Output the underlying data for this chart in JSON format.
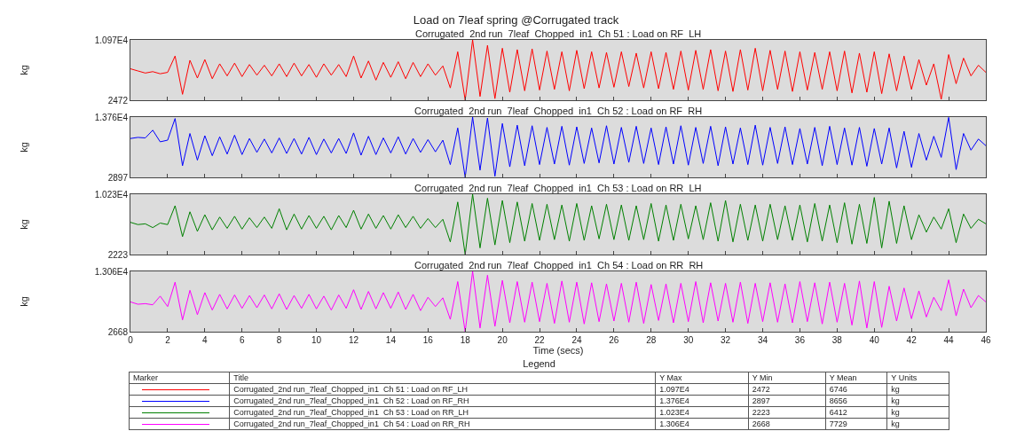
{
  "chart_data": [
    {
      "type": "line",
      "title": "Load on 7leaf spring @Corrugated track",
      "subtitle": "Corrugated  2nd run  7leaf  Chopped  in1  Ch 51 : Load on RF  LH",
      "ylabel": "kg",
      "line_style": "solid",
      "tick_labels": "y",
      "xlim": [
        0,
        46
      ],
      "xticks": [
        0,
        2,
        4,
        6,
        8,
        10,
        12,
        14,
        16,
        18,
        20,
        22,
        24,
        26,
        28,
        30,
        32,
        34,
        36,
        38,
        40,
        42,
        44,
        46
      ],
      "ylim": [
        2472,
        10970
      ],
      "yticks": [
        2472,
        {
          "value": 10970,
          "label": "1.097E4"
        }
      ],
      "x": [
        0,
        0.4,
        0.8,
        1.2,
        1.6,
        2,
        2.4,
        2.8,
        3.2,
        3.6,
        4,
        4.4,
        4.8,
        5.2,
        5.6,
        6,
        6.4,
        6.8,
        7.2,
        7.6,
        8,
        8.4,
        8.8,
        9.2,
        9.6,
        10,
        10.4,
        10.8,
        11.2,
        11.6,
        12,
        12.4,
        12.8,
        13.2,
        13.6,
        14,
        14.4,
        14.8,
        15.2,
        15.6,
        16,
        16.4,
        16.8,
        17.2,
        17.6,
        18,
        18.4,
        18.8,
        19.2,
        19.6,
        20,
        20.4,
        20.8,
        21.2,
        21.6,
        22,
        22.4,
        22.8,
        23.2,
        23.6,
        24,
        24.4,
        24.8,
        25.2,
        25.6,
        26,
        26.4,
        26.8,
        27.2,
        27.6,
        28,
        28.4,
        28.8,
        29.2,
        29.6,
        30,
        30.4,
        30.8,
        31.2,
        31.6,
        32,
        32.4,
        32.8,
        33.2,
        33.6,
        34,
        34.4,
        34.8,
        35.2,
        35.6,
        36,
        36.4,
        36.8,
        37.2,
        37.6,
        38,
        38.4,
        38.8,
        39.2,
        39.6,
        40,
        40.4,
        40.8,
        41.2,
        41.6,
        42,
        42.4,
        42.8,
        43.2,
        43.6,
        44,
        44.4,
        44.8,
        45.2,
        45.6,
        46
      ],
      "series": [
        {
          "color": "#ff0000",
          "values": [
            6900,
            6600,
            6300,
            6500,
            6200,
            6400,
            8700,
            3300,
            8100,
            5600,
            8200,
            5500,
            7600,
            5900,
            7700,
            5800,
            7500,
            6000,
            7400,
            5900,
            7600,
            5800,
            7700,
            5900,
            7500,
            5700,
            7600,
            6000,
            7500,
            5800,
            8700,
            5600,
            8000,
            5300,
            7800,
            5700,
            7900,
            5500,
            7800,
            5800,
            7600,
            6000,
            7300,
            4200,
            9300,
            2472,
            10970,
            3000,
            10200,
            2700,
            9800,
            3600,
            9600,
            3800,
            9700,
            3900,
            9400,
            4000,
            9300,
            3800,
            9500,
            4100,
            9300,
            4200,
            9200,
            4300,
            9300,
            4400,
            9100,
            4200,
            9300,
            4100,
            9200,
            4000,
            9400,
            3900,
            9500,
            4000,
            9600,
            3800,
            9400,
            3700,
            9600,
            3900,
            9800,
            3800,
            9500,
            4000,
            9400,
            3700,
            9300,
            3900,
            9200,
            4000,
            9300,
            3800,
            9400,
            3500,
            9100,
            3600,
            9300,
            3400,
            9000,
            3800,
            8700,
            4000,
            8200,
            4600,
            7600,
            2600,
            8900,
            4800,
            8400,
            5900,
            7400,
            6400
          ]
        }
      ]
    },
    {
      "type": "line",
      "subtitle": "Corrugated  2nd run  7leaf  Chopped  in1  Ch 52 : Load on RF  RH",
      "ylabel": "kg",
      "line_style": "solid",
      "tick_labels": "y",
      "xlim": [
        0,
        46
      ],
      "xticks": [
        0,
        2,
        4,
        6,
        8,
        10,
        12,
        14,
        16,
        18,
        20,
        22,
        24,
        26,
        28,
        30,
        32,
        34,
        36,
        38,
        40,
        42,
        44,
        46
      ],
      "ylim": [
        2897,
        13760
      ],
      "yticks": [
        2897,
        {
          "value": 13760,
          "label": "1.376E4"
        }
      ],
      "x": [
        0,
        0.4,
        0.8,
        1.2,
        1.6,
        2,
        2.4,
        2.8,
        3.2,
        3.6,
        4,
        4.4,
        4.8,
        5.2,
        5.6,
        6,
        6.4,
        6.8,
        7.2,
        7.6,
        8,
        8.4,
        8.8,
        9.2,
        9.6,
        10,
        10.4,
        10.8,
        11.2,
        11.6,
        12,
        12.4,
        12.8,
        13.2,
        13.6,
        14,
        14.4,
        14.8,
        15.2,
        15.6,
        16,
        16.4,
        16.8,
        17.2,
        17.6,
        18,
        18.4,
        18.8,
        19.2,
        19.6,
        20,
        20.4,
        20.8,
        21.2,
        21.6,
        22,
        22.4,
        22.8,
        23.2,
        23.6,
        24,
        24.4,
        24.8,
        25.2,
        25.6,
        26,
        26.4,
        26.8,
        27.2,
        27.6,
        28,
        28.4,
        28.8,
        29.2,
        29.6,
        30,
        30.4,
        30.8,
        31.2,
        31.6,
        32,
        32.4,
        32.8,
        33.2,
        33.6,
        34,
        34.4,
        34.8,
        35.2,
        35.6,
        36,
        36.4,
        36.8,
        37.2,
        37.6,
        38,
        38.4,
        38.8,
        39.2,
        39.6,
        40,
        40.4,
        40.8,
        41.2,
        41.6,
        42,
        42.4,
        42.8,
        43.2,
        43.6,
        44,
        44.4,
        44.8,
        45.2,
        45.6,
        46
      ],
      "series": [
        {
          "color": "#0000ff",
          "values": [
            9900,
            10100,
            10000,
            11400,
            9300,
            9600,
            13500,
            5000,
            10800,
            6000,
            10400,
            6800,
            10200,
            7100,
            10500,
            7000,
            9900,
            7400,
            9800,
            7300,
            10000,
            7200,
            9900,
            7100,
            10100,
            7000,
            9800,
            7300,
            9900,
            7200,
            10900,
            6900,
            10300,
            7000,
            10000,
            7300,
            10200,
            7100,
            9900,
            7400,
            9700,
            7500,
            9600,
            5200,
            11800,
            2897,
            13760,
            4200,
            13600,
            3100,
            12600,
            4800,
            12300,
            5000,
            12200,
            5200,
            11900,
            5300,
            12100,
            5100,
            12000,
            5400,
            11800,
            5500,
            12200,
            5300,
            11900,
            5600,
            12100,
            5400,
            11800,
            5200,
            12000,
            5300,
            12200,
            5100,
            11900,
            5400,
            12100,
            5000,
            12000,
            5300,
            11800,
            5200,
            12300,
            5100,
            11900,
            5400,
            12000,
            5200,
            11700,
            5300,
            11900,
            5000,
            12100,
            5200,
            11800,
            5100,
            11900,
            4900,
            11700,
            5300,
            11800,
            4600,
            11200,
            4700,
            10800,
            6000,
            10300,
            6500,
            13700,
            4300,
            10800,
            7800,
            9800,
            8600
          ]
        }
      ]
    },
    {
      "type": "line",
      "subtitle": "Corrugated  2nd run  7leaf  Chopped  in1  Ch 53 : Load on RR  LH",
      "ylabel": "kg",
      "line_style": "solid",
      "tick_labels": "y",
      "xlim": [
        0,
        46
      ],
      "xticks": [
        0,
        2,
        4,
        6,
        8,
        10,
        12,
        14,
        16,
        18,
        20,
        22,
        24,
        26,
        28,
        30,
        32,
        34,
        36,
        38,
        40,
        42,
        44,
        46
      ],
      "ylim": [
        2223,
        10230
      ],
      "yticks": [
        2223,
        {
          "value": 10230,
          "label": "1.023E4"
        }
      ],
      "x": [
        0,
        0.4,
        0.8,
        1.2,
        1.6,
        2,
        2.4,
        2.8,
        3.2,
        3.6,
        4,
        4.4,
        4.8,
        5.2,
        5.6,
        6,
        6.4,
        6.8,
        7.2,
        7.6,
        8,
        8.4,
        8.8,
        9.2,
        9.6,
        10,
        10.4,
        10.8,
        11.2,
        11.6,
        12,
        12.4,
        12.8,
        13.2,
        13.6,
        14,
        14.4,
        14.8,
        15.2,
        15.6,
        16,
        16.4,
        16.8,
        17.2,
        17.6,
        18,
        18.4,
        18.8,
        19.2,
        19.6,
        20,
        20.4,
        20.8,
        21.2,
        21.6,
        22,
        22.4,
        22.8,
        23.2,
        23.6,
        24,
        24.4,
        24.8,
        25.2,
        25.6,
        26,
        26.4,
        26.8,
        27.2,
        27.6,
        28,
        28.4,
        28.8,
        29.2,
        29.6,
        30,
        30.4,
        30.8,
        31.2,
        31.6,
        32,
        32.4,
        32.8,
        33.2,
        33.6,
        34,
        34.4,
        34.8,
        35.2,
        35.6,
        36,
        36.4,
        36.8,
        37.2,
        37.6,
        38,
        38.4,
        38.8,
        39.2,
        39.6,
        40,
        40.4,
        40.8,
        41.2,
        41.6,
        42,
        42.4,
        42.8,
        43.2,
        43.6,
        44,
        44.4,
        44.8,
        45.2,
        45.6,
        46
      ],
      "series": [
        {
          "color": "#008000",
          "values": [
            6500,
            6200,
            6300,
            5800,
            6400,
            6200,
            8700,
            4600,
            7900,
            5300,
            7500,
            5500,
            7200,
            5700,
            7300,
            5600,
            7100,
            5800,
            7200,
            5700,
            8300,
            5500,
            7600,
            5600,
            7400,
            5700,
            7300,
            5500,
            7400,
            5800,
            8100,
            5600,
            7600,
            5700,
            7400,
            5600,
            7500,
            5800,
            7300,
            5700,
            7000,
            5800,
            6900,
            3900,
            9200,
            2223,
            10230,
            3100,
            9700,
            3500,
            9400,
            3800,
            9200,
            4000,
            9000,
            4100,
            8900,
            4200,
            8800,
            4000,
            9000,
            4100,
            8700,
            4300,
            8900,
            4200,
            8800,
            4100,
            8700,
            4200,
            9000,
            4000,
            8800,
            4100,
            8900,
            4300,
            8700,
            4200,
            9100,
            4000,
            9400,
            3900,
            8900,
            4100,
            8800,
            4000,
            8900,
            4200,
            8700,
            4100,
            8800,
            3900,
            9000,
            4000,
            8800,
            3800,
            9100,
            3600,
            8900,
            3700,
            9800,
            3100,
            9300,
            3700,
            8700,
            4200,
            7500,
            5200,
            7200,
            5600,
            8300,
            3800,
            7600,
            5700,
            6900,
            6300
          ]
        }
      ]
    },
    {
      "type": "line",
      "subtitle": "Corrugated  2nd run  7leaf  Chopped  in1  Ch 54 : Load on RR  RH",
      "ylabel": "kg",
      "xlabel": "Time (secs)",
      "line_style": "solid",
      "xlim": [
        0,
        46
      ],
      "xticks": [
        0,
        2,
        4,
        6,
        8,
        10,
        12,
        14,
        16,
        18,
        20,
        22,
        24,
        26,
        28,
        30,
        32,
        34,
        36,
        38,
        40,
        42,
        44,
        46
      ],
      "ylim": [
        2668,
        13060
      ],
      "yticks": [
        2668,
        {
          "value": 13060,
          "label": "1.306E4"
        }
      ],
      "x": [
        0,
        0.4,
        0.8,
        1.2,
        1.6,
        2,
        2.4,
        2.8,
        3.2,
        3.6,
        4,
        4.4,
        4.8,
        5.2,
        5.6,
        6,
        6.4,
        6.8,
        7.2,
        7.6,
        8,
        8.4,
        8.8,
        9.2,
        9.6,
        10,
        10.4,
        10.8,
        11.2,
        11.6,
        12,
        12.4,
        12.8,
        13.2,
        13.6,
        14,
        14.4,
        14.8,
        15.2,
        15.6,
        16,
        16.4,
        16.8,
        17.2,
        17.6,
        18,
        18.4,
        18.8,
        19.2,
        19.6,
        20,
        20.4,
        20.8,
        21.2,
        21.6,
        22,
        22.4,
        22.8,
        23.2,
        23.6,
        24,
        24.4,
        24.8,
        25.2,
        25.6,
        26,
        26.4,
        26.8,
        27.2,
        27.6,
        28,
        28.4,
        28.8,
        29.2,
        29.6,
        30,
        30.4,
        30.8,
        31.2,
        31.6,
        32,
        32.4,
        32.8,
        33.2,
        33.6,
        34,
        34.4,
        34.8,
        35.2,
        35.6,
        36,
        36.4,
        36.8,
        37.2,
        37.6,
        38,
        38.4,
        38.8,
        39.2,
        39.6,
        40,
        40.4,
        40.8,
        41.2,
        41.6,
        42,
        42.4,
        42.8,
        43.2,
        43.6,
        44,
        44.4,
        44.8,
        45.2,
        45.6,
        46
      ],
      "series": [
        {
          "color": "#ff00ff",
          "values": [
            7800,
            7400,
            7500,
            7300,
            8800,
            7000,
            11200,
            4700,
            9800,
            5600,
            9400,
            6400,
            9100,
            6600,
            9000,
            6700,
            8900,
            6800,
            9000,
            6600,
            9200,
            6500,
            8900,
            6700,
            9100,
            6600,
            8800,
            6400,
            9000,
            6700,
            9900,
            6500,
            9600,
            6600,
            9400,
            6700,
            9500,
            6500,
            9100,
            6300,
            8600,
            7000,
            8500,
            4800,
            11300,
            2668,
            13060,
            3300,
            12400,
            3600,
            11500,
            4200,
            11300,
            4300,
            11200,
            4400,
            11000,
            4100,
            11400,
            4300,
            11200,
            4000,
            11100,
            4400,
            10900,
            4500,
            11000,
            4300,
            11200,
            4100,
            10800,
            4600,
            10900,
            4200,
            11000,
            4400,
            11300,
            4200,
            11100,
            4500,
            11000,
            4300,
            11200,
            4100,
            11000,
            4400,
            11100,
            4300,
            10900,
            4200,
            11300,
            4400,
            11100,
            4000,
            11200,
            4300,
            11000,
            3800,
            11400,
            3300,
            11300,
            3400,
            10500,
            4500,
            10200,
            4900,
            9700,
            5200,
            8600,
            6300,
            11600,
            5400,
            10000,
            6800,
            8900,
            7800
          ]
        }
      ]
    },
    {
      "type": "other",
      "title": "Legend",
      "colors": [
        "#ff0000",
        "#0000ff",
        "#008000",
        "#ff00ff"
      ],
      "annotations": [
        "Marker",
        "Title",
        "Y Max",
        "Y Min",
        "Y Mean",
        "Y Units",
        "Corrugated_2nd run_7leaf_Chopped_in1  Ch 51 : Load on RF_LH",
        "1.097E4",
        "2472",
        "6746",
        "kg",
        "Corrugated_2nd run_7leaf_Chopped_in1  Ch 52 : Load on RF_RH",
        "1.376E4",
        "2897",
        "8656",
        "kg",
        "Corrugated_2nd run_7leaf_Chopped_in1  Ch 53 : Load on RR_LH",
        "1.023E4",
        "2223",
        "6412",
        "kg",
        "Corrugated_2nd run_7leaf_Chopped_in1  Ch 54 : Load on RR_RH",
        "1.306E4",
        "2668",
        "7729",
        "kg"
      ]
    }
  ]
}
